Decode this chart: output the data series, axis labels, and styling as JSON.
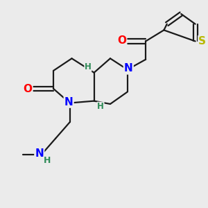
{
  "bg_color": "#ebebeb",
  "atom_colors": {
    "N": "#0000ff",
    "O": "#ff0000",
    "S": "#b8b800",
    "C": "#000000",
    "H": "#2e8b57"
  },
  "bond_color": "#1a1a1a",
  "bond_width": 1.6,
  "figsize": [
    3.0,
    3.0
  ],
  "dpi": 100
}
